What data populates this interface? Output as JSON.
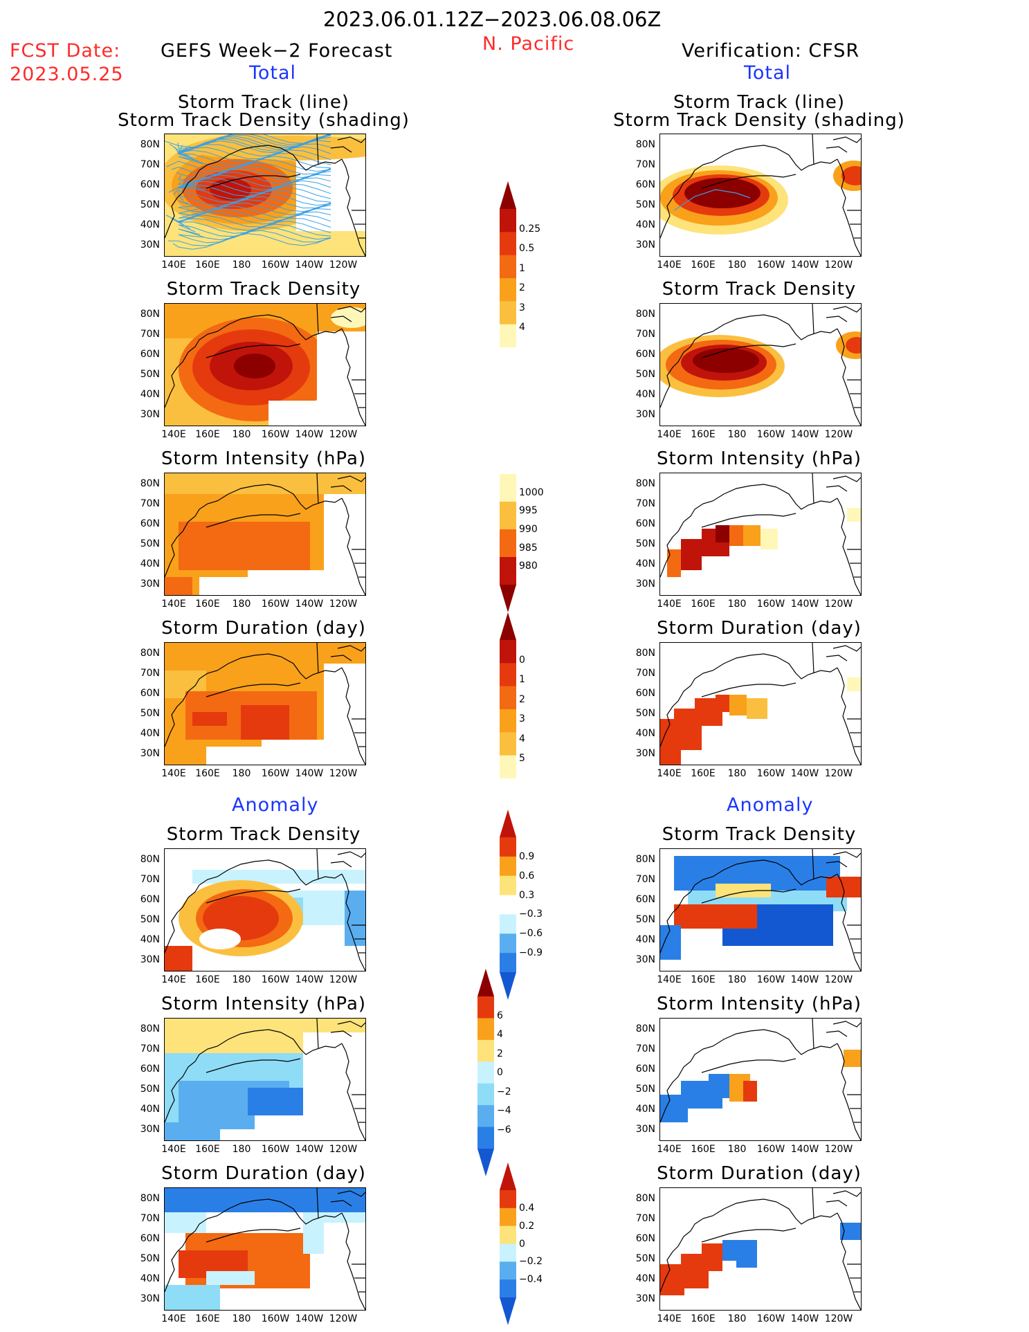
{
  "header": {
    "date_range": "2023.06.01.12Z−2023.06.08.06Z",
    "region": "N. Pacific",
    "fcst_label": "FCST Date:",
    "fcst_date": "2023.05.25",
    "left_title": "GEFS Week−2 Forecast",
    "right_title": "Verification: CFSR"
  },
  "sections": {
    "total_label": "Total",
    "anomaly_label": "Anomaly"
  },
  "panel_titles": {
    "track_line": "Storm Track (line)",
    "track_shading": "Storm Track Density (shading)",
    "density": "Storm Track Density",
    "intensity": "Storm Intensity (hPa)",
    "duration": "Storm Duration (day)"
  },
  "axes": {
    "lat_labels": [
      "80N",
      "70N",
      "60N",
      "50N",
      "40N",
      "30N"
    ],
    "lon_labels": [
      "140E",
      "160E",
      "180",
      "160W",
      "140W",
      "120W"
    ]
  },
  "colorbars": {
    "density_total": [
      "0.25",
      "0.5",
      "1",
      "2",
      "3",
      "4"
    ],
    "intensity_total": [
      "1000",
      "995",
      "990",
      "985",
      "980"
    ],
    "duration_total": [
      "0",
      "1",
      "2",
      "3",
      "4",
      "5"
    ],
    "density_anom": [
      "0.9",
      "0.6",
      "0.3",
      "−0.3",
      "−0.6",
      "−0.9"
    ],
    "intensity_anom": [
      "6",
      "4",
      "2",
      "0",
      "−2",
      "−4",
      "−6"
    ],
    "duration_anom": [
      "0.4",
      "0.2",
      "0",
      "−0.2",
      "−0.4"
    ]
  },
  "colors": {
    "warm": [
      "#fff7b8",
      "#fde37a",
      "#fbbf3f",
      "#f9a11b",
      "#f36a12",
      "#e53a0e",
      "#c0140a",
      "#8c0000"
    ],
    "cool": [
      "#c9f2ff",
      "#8fdcf7",
      "#5aaef0",
      "#2a7fe6",
      "#1358d0"
    ],
    "track_line": "#3aa0e6",
    "title_red": "#ff2a2a",
    "title_blue": "#1a35ff"
  }
}
